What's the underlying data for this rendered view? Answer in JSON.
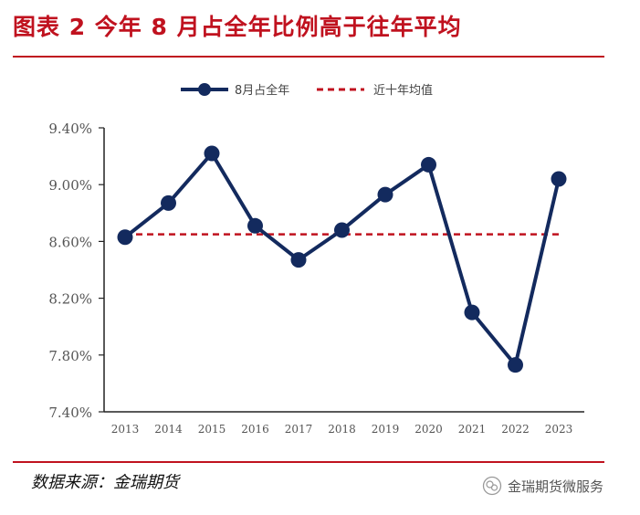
{
  "header": {
    "title": "图表 2  今年 8 月占全年比例高于往年平均"
  },
  "footer": {
    "source": "数据来源：金瑞期货",
    "watermark": "金瑞期货微服务"
  },
  "chart_data": {
    "type": "line",
    "categories": [
      "2013",
      "2014",
      "2015",
      "2016",
      "2017",
      "2018",
      "2019",
      "2020",
      "2021",
      "2022",
      "2023"
    ],
    "series": [
      {
        "name": "8月占全年",
        "values": [
          8.63,
          8.87,
          9.22,
          8.71,
          8.47,
          8.68,
          8.93,
          9.14,
          8.1,
          7.73,
          9.04
        ],
        "color": "#132a5e"
      },
      {
        "name": "近十年均值",
        "values": [
          8.65,
          8.65,
          8.65,
          8.65,
          8.65,
          8.65,
          8.65,
          8.65,
          8.65,
          8.65,
          8.65
        ],
        "color": "#c0121f",
        "style": "dashed"
      }
    ],
    "ylim": [
      7.4,
      9.4
    ],
    "yticks": [
      "9.40%",
      "9.00%",
      "8.60%",
      "8.20%",
      "7.80%",
      "7.40%"
    ],
    "ytick_values": [
      9.4,
      9.0,
      8.6,
      8.2,
      7.8,
      7.4
    ],
    "legend": "top-center",
    "grid": false
  }
}
